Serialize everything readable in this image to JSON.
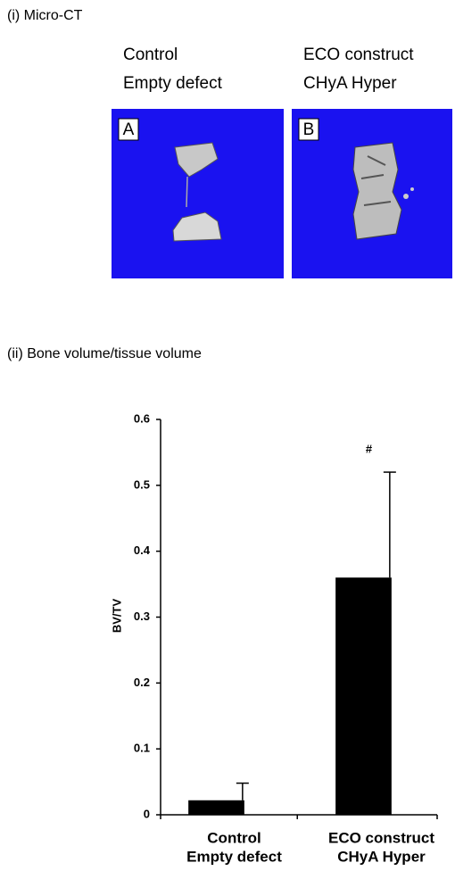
{
  "panels": {
    "micro_ct_title": "(i) Micro-CT",
    "bvtv_title": "(ii)  Bone volume/tissue volume"
  },
  "images": [
    {
      "label": "A",
      "caption": [
        "Control",
        "Empty defect"
      ]
    },
    {
      "label": "B",
      "caption": [
        "ECO construct",
        "CHyA Hyper"
      ]
    }
  ],
  "chart_data": {
    "type": "bar",
    "y_label": "BV/TV",
    "categories": [
      [
        "Control",
        "Empty defect"
      ],
      [
        "ECO construct",
        "CHyA Hyper"
      ]
    ],
    "values": [
      0.022,
      0.36
    ],
    "errors": [
      0.026,
      0.16
    ],
    "color": "#000000",
    "annotation": "#",
    "ylim": [
      0,
      0.6
    ],
    "yticks": [
      0,
      0.1,
      0.2,
      0.3,
      0.4,
      0.5,
      0.6
    ],
    "grid": false
  }
}
